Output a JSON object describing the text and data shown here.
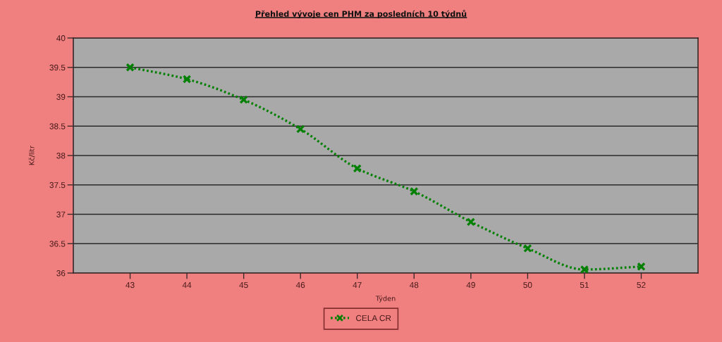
{
  "chart_data": {
    "type": "line",
    "title": "Přehled vývoje cen PHM za posledních 10 týdnů",
    "xlabel": "Týden",
    "ylabel": "Kč/litr",
    "x": [
      43,
      44,
      45,
      46,
      47,
      48,
      49,
      50,
      51,
      52
    ],
    "series": [
      {
        "name": "CELA CR",
        "color": "#008000",
        "values": [
          39.5,
          39.3,
          38.95,
          38.45,
          37.78,
          37.39,
          36.87,
          36.42,
          36.06,
          36.11
        ]
      }
    ],
    "xlim": [
      42,
      53
    ],
    "xticks": [
      43,
      44,
      45,
      46,
      47,
      48,
      49,
      50,
      51,
      52
    ],
    "ylim": [
      36,
      40
    ],
    "yticks": [
      36,
      36.5,
      37,
      37.5,
      38,
      38.5,
      39,
      39.5,
      40
    ],
    "grid": "y",
    "legend": "bottom",
    "marker": "cross",
    "line_style": "dotted"
  }
}
